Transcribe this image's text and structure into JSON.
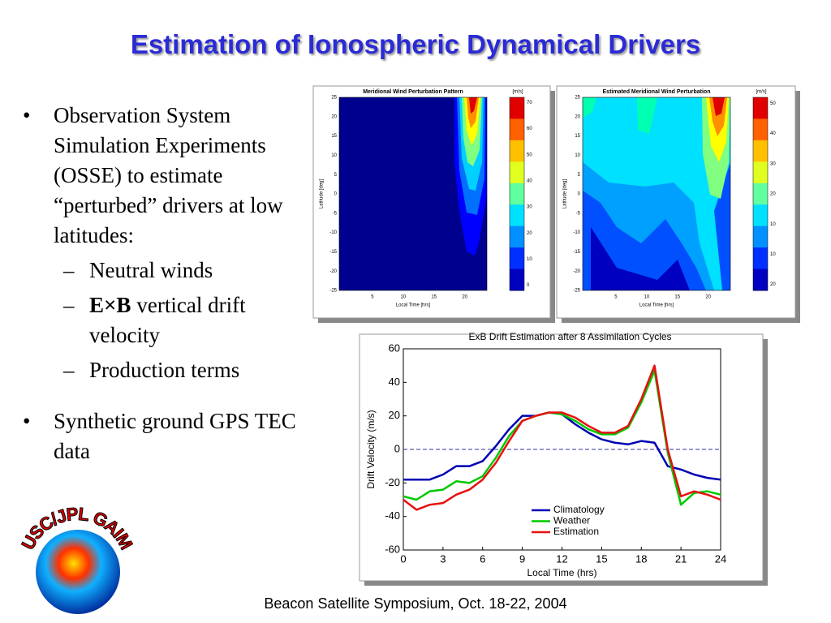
{
  "title": "Estimation of Ionospheric Dynamical Drivers",
  "bullets": [
    {
      "text": "Observation System Simulation Experiments (OSSE) to estimate “perturbed” drivers at low latitudes:",
      "sub": [
        "Neutral winds",
        {
          "bold": "E×B",
          "rest": "vertical drift velocity"
        },
        "Production terms"
      ]
    },
    {
      "text": "Synthetic ground GPS TEC data"
    }
  ],
  "logo": "USC/JPL GAIM",
  "footer": "Beacon Satellite Symposium, Oct. 18-22, 2004",
  "panels": [
    {
      "title": "Meridional Wind Perturbation Pattern",
      "unit": "[m/s]",
      "xlabel": "Local Time [hrs]",
      "ylabel": "Latitude [deg]",
      "xticks": [
        5,
        10,
        15,
        20
      ],
      "yticks": [
        25,
        20,
        15,
        10,
        5,
        0,
        -5,
        -10,
        -15,
        -20,
        -25
      ],
      "cbticks": [
        70,
        60,
        50,
        40,
        30,
        20,
        10,
        0
      ]
    },
    {
      "title": "Estimated Meridional Wind Perturbation",
      "unit": "[m/s]",
      "xlabel": "Local Time [hrs]",
      "ylabel": "Latitude [deg]",
      "xticks": [
        5,
        10,
        15,
        20
      ],
      "yticks": [
        25,
        20,
        15,
        10,
        5,
        0,
        -5,
        -10,
        -15,
        -20,
        -25
      ],
      "cbticks": [
        50,
        40,
        30,
        20,
        10,
        10,
        20
      ]
    }
  ],
  "chart_data": {
    "type": "line",
    "title": "ExB Drift Estimation after 8 Assimilation Cycles",
    "xlabel": "Local Time (hrs)",
    "ylabel": "Drift Velocity (m/s)",
    "x": [
      0,
      1,
      2,
      3,
      4,
      5,
      6,
      7,
      8,
      9,
      10,
      11,
      12,
      13,
      14,
      15,
      16,
      17,
      18,
      19,
      20,
      21,
      22,
      23,
      24
    ],
    "series": [
      {
        "name": "Climatology",
        "color": "#0000b4",
        "values": [
          -18,
          -18,
          -18,
          -15,
          -10,
          -10,
          -7,
          2,
          12,
          20,
          20,
          22,
          21,
          15,
          10,
          6,
          4,
          3,
          5,
          4,
          -10,
          -12,
          -15,
          -17,
          -18
        ]
      },
      {
        "name": "Weather",
        "color": "#00c800",
        "values": [
          -28,
          -30,
          -25,
          -24,
          -19,
          -20,
          -16,
          -5,
          8,
          17,
          20,
          22,
          21,
          17,
          12,
          9,
          9,
          13,
          28,
          47,
          -2,
          -33,
          -26,
          -25,
          -27
        ]
      },
      {
        "name": "Estimation",
        "color": "#e81010",
        "values": [
          -30,
          -36,
          -33,
          -32,
          -27,
          -24,
          -18,
          -8,
          5,
          17,
          20,
          22,
          22,
          19,
          14,
          10,
          10,
          14,
          30,
          50,
          0,
          -28,
          -25,
          -27,
          -30
        ]
      }
    ],
    "xlim": [
      0,
      24
    ],
    "ylim": [
      -60,
      60
    ],
    "xticks": [
      0,
      3,
      6,
      9,
      12,
      15,
      18,
      21,
      24
    ],
    "yticks": [
      60,
      40,
      20,
      0,
      -20,
      -40,
      -60
    ],
    "hline": 0,
    "hline_color": "#3030a0"
  }
}
